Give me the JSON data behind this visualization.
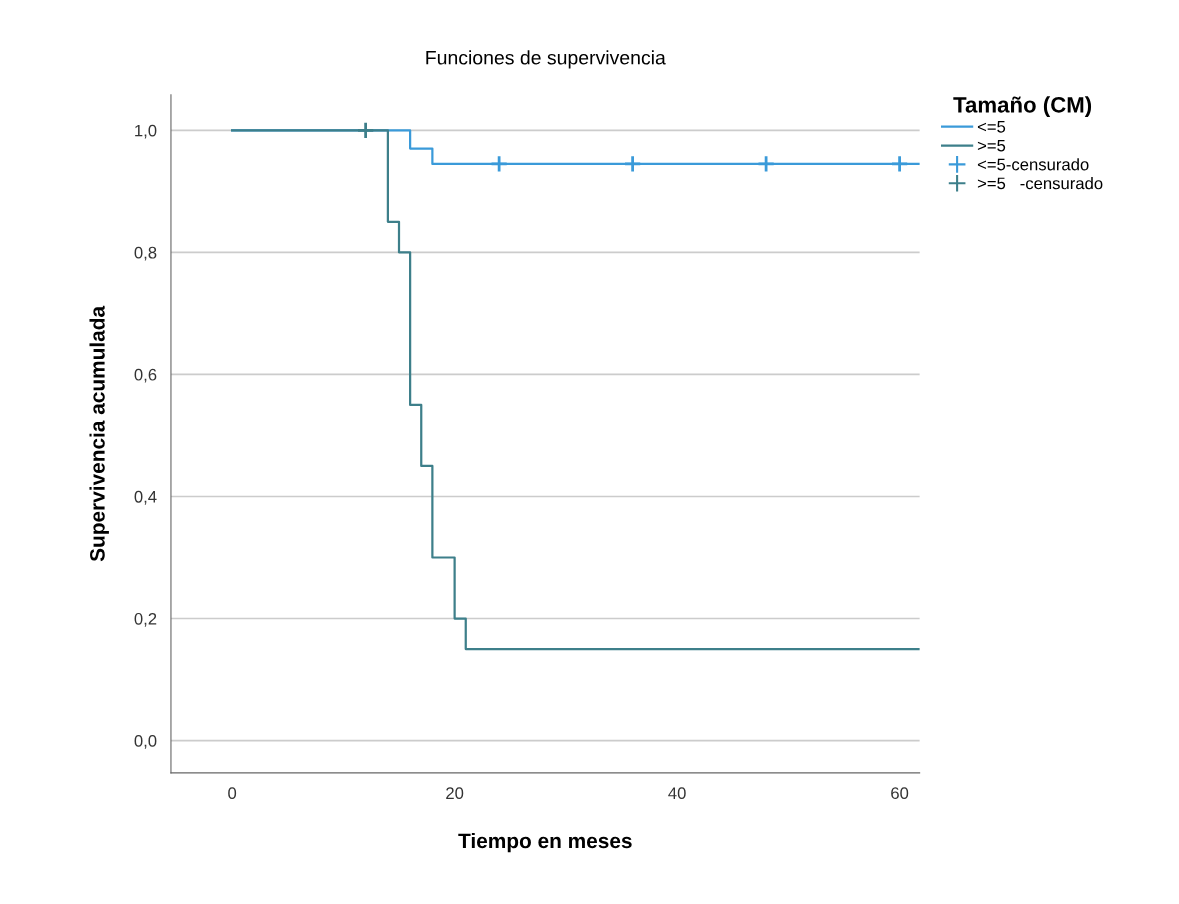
{
  "chart_data": {
    "type": "step",
    "title": "Funciones de supervivencia",
    "xlabel": "Tiempo en meses",
    "ylabel": "Supervivencia acumulada",
    "legend_title": "Tamaño (CM)",
    "legend": "top right",
    "grid": "y",
    "xlim": [
      -5.5,
      61.8
    ],
    "ylim": [
      -0.053,
      1.058
    ],
    "xticks": [
      0,
      20,
      40,
      60
    ],
    "yticks": [
      {
        "value": 0,
        "label": "0,0"
      },
      {
        "value": 0.2,
        "label": "0,2"
      },
      {
        "value": 0.4,
        "label": "0,4"
      },
      {
        "value": 0.6,
        "label": "0,6"
      },
      {
        "value": 0.8,
        "label": "0,8"
      },
      {
        "value": 1,
        "label": "1,0"
      }
    ],
    "series": [
      {
        "name": "<=5",
        "color": "#3a9ad9",
        "marker": "none",
        "x": [
          0,
          16,
          18,
          61.8
        ],
        "values": [
          1,
          0.97,
          0.945,
          0.945
        ]
      },
      {
        "name": ">=5",
        "color": "#3d7f8a",
        "marker": "none",
        "x": [
          0,
          14,
          15,
          16,
          17,
          18,
          20,
          21,
          61.8
        ],
        "values": [
          1,
          0.85,
          0.8,
          0.55,
          0.45,
          0.3,
          0.2,
          0.15,
          0.15
        ]
      },
      {
        "name": "<=5-censurado",
        "type": "scatter",
        "color": "#3a9ad9",
        "marker": "cross",
        "x": [
          24,
          36,
          48,
          60
        ],
        "values": [
          0.945,
          0.945,
          0.945,
          0.945
        ]
      },
      {
        "name": ">=5   -censurado",
        "type": "scatter",
        "color": "#3d7f8a",
        "marker": "cross",
        "x": [
          12
        ],
        "values": [
          1
        ]
      }
    ]
  }
}
